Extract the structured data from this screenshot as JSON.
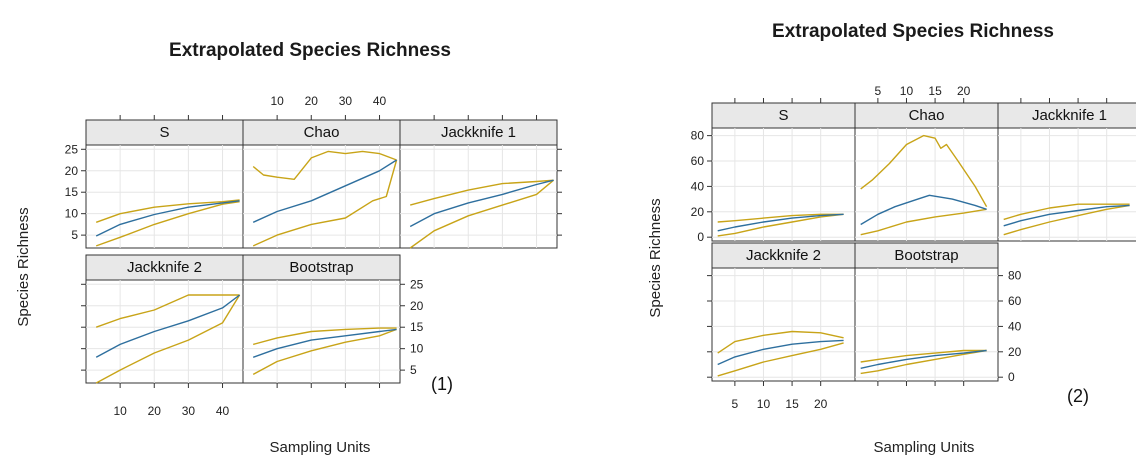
{
  "chart_data": [
    {
      "id": "fig1",
      "type": "line",
      "title": "Extrapolated Species Richness",
      "xlabel": "Sampling Units",
      "ylabel": "Species Richness",
      "label": "(1)",
      "xlim": [
        0,
        46
      ],
      "ylim": [
        2,
        26
      ],
      "x_ticks": [
        10,
        20,
        30,
        40
      ],
      "y_ticks": [
        5,
        10,
        15,
        20,
        25
      ],
      "colors": {
        "mean": "#2e6f9e",
        "bounds": "#c8a418",
        "grid": "#e6e6e6",
        "strip": "#e8e8e8"
      },
      "panels": [
        {
          "name": "S",
          "mean": [
            [
              3,
              4.8
            ],
            [
              10,
              7.5
            ],
            [
              20,
              9.8
            ],
            [
              30,
              11.5
            ],
            [
              40,
              12.5
            ],
            [
              45,
              13
            ]
          ],
          "upper": [
            [
              3,
              8
            ],
            [
              10,
              10
            ],
            [
              20,
              11.5
            ],
            [
              30,
              12.3
            ],
            [
              40,
              12.8
            ],
            [
              45,
              13.2
            ]
          ],
          "lower": [
            [
              3,
              2.5
            ],
            [
              10,
              4.5
            ],
            [
              20,
              7.5
            ],
            [
              30,
              10
            ],
            [
              40,
              12.2
            ],
            [
              45,
              12.8
            ]
          ]
        },
        {
          "name": "Chao",
          "mean": [
            [
              3,
              8
            ],
            [
              10,
              10.5
            ],
            [
              20,
              13
            ],
            [
              30,
              16.5
            ],
            [
              40,
              20
            ],
            [
              45,
              22.5
            ]
          ],
          "upper": [
            [
              3,
              21
            ],
            [
              6,
              19
            ],
            [
              10,
              18.5
            ],
            [
              15,
              18
            ],
            [
              20,
              23
            ],
            [
              25,
              24.5
            ],
            [
              30,
              24
            ],
            [
              35,
              24.5
            ],
            [
              40,
              24
            ],
            [
              45,
              22.5
            ]
          ],
          "lower": [
            [
              3,
              2.5
            ],
            [
              10,
              5
            ],
            [
              20,
              7.5
            ],
            [
              30,
              9
            ],
            [
              38,
              13
            ],
            [
              42,
              14
            ],
            [
              45,
              22.5
            ]
          ]
        },
        {
          "name": "Jackknife 1",
          "mean": [
            [
              3,
              7
            ],
            [
              10,
              10
            ],
            [
              20,
              12.5
            ],
            [
              30,
              14.5
            ],
            [
              40,
              16.8
            ],
            [
              45,
              17.8
            ]
          ],
          "upper": [
            [
              3,
              12
            ],
            [
              10,
              13.5
            ],
            [
              20,
              15.5
            ],
            [
              30,
              17
            ],
            [
              40,
              17.5
            ],
            [
              45,
              17.8
            ]
          ],
          "lower": [
            [
              3,
              2
            ],
            [
              10,
              6
            ],
            [
              20,
              9.5
            ],
            [
              30,
              12
            ],
            [
              40,
              14.5
            ],
            [
              45,
              17.8
            ]
          ]
        },
        {
          "name": "Jackknife 2",
          "mean": [
            [
              3,
              8
            ],
            [
              10,
              11
            ],
            [
              20,
              14
            ],
            [
              30,
              16.5
            ],
            [
              40,
              19.5
            ],
            [
              45,
              22.5
            ]
          ],
          "upper": [
            [
              3,
              15
            ],
            [
              10,
              17
            ],
            [
              20,
              19
            ],
            [
              30,
              22.5
            ],
            [
              40,
              22.5
            ],
            [
              45,
              22.5
            ]
          ],
          "lower": [
            [
              3,
              2
            ],
            [
              10,
              5
            ],
            [
              20,
              9
            ],
            [
              30,
              12
            ],
            [
              40,
              16
            ],
            [
              45,
              22.5
            ]
          ]
        },
        {
          "name": "Bootstrap",
          "mean": [
            [
              3,
              8
            ],
            [
              10,
              10
            ],
            [
              20,
              12
            ],
            [
              30,
              13
            ],
            [
              40,
              14
            ],
            [
              45,
              14.5
            ]
          ],
          "upper": [
            [
              3,
              11
            ],
            [
              10,
              12.5
            ],
            [
              20,
              14
            ],
            [
              30,
              14.5
            ],
            [
              40,
              14.8
            ],
            [
              45,
              14.8
            ]
          ],
          "lower": [
            [
              3,
              4
            ],
            [
              10,
              7
            ],
            [
              20,
              9.5
            ],
            [
              30,
              11.5
            ],
            [
              40,
              13
            ],
            [
              45,
              14.5
            ]
          ]
        }
      ]
    },
    {
      "id": "fig2",
      "type": "line",
      "title": "Extrapolated Species Richness",
      "xlabel": "Sampling Units",
      "ylabel": "Species Richness",
      "label": "(2)",
      "xlim": [
        1,
        26
      ],
      "ylim": [
        -3,
        86
      ],
      "x_ticks": [
        5,
        10,
        15,
        20
      ],
      "y_ticks": [
        0,
        20,
        40,
        60,
        80
      ],
      "colors": {
        "mean": "#2e6f9e",
        "bounds": "#c8a418",
        "grid": "#e6e6e6",
        "strip": "#e8e8e8"
      },
      "panels": [
        {
          "name": "S",
          "mean": [
            [
              2,
              5
            ],
            [
              5,
              8
            ],
            [
              10,
              12
            ],
            [
              15,
              15
            ],
            [
              20,
              17
            ],
            [
              24,
              18
            ]
          ],
          "upper": [
            [
              2,
              12
            ],
            [
              5,
              13
            ],
            [
              10,
              15
            ],
            [
              15,
              17
            ],
            [
              20,
              18
            ],
            [
              24,
              18
            ]
          ],
          "lower": [
            [
              2,
              1
            ],
            [
              5,
              3
            ],
            [
              10,
              8
            ],
            [
              15,
              12
            ],
            [
              20,
              16
            ],
            [
              24,
              18
            ]
          ]
        },
        {
          "name": "Chao",
          "mean": [
            [
              2,
              10
            ],
            [
              5,
              18
            ],
            [
              8,
              24
            ],
            [
              12,
              30
            ],
            [
              14,
              33
            ],
            [
              18,
              30
            ],
            [
              22,
              25
            ],
            [
              24,
              22
            ]
          ],
          "upper": [
            [
              2,
              38
            ],
            [
              4,
              45
            ],
            [
              7,
              58
            ],
            [
              10,
              73
            ],
            [
              13,
              80
            ],
            [
              15,
              78
            ],
            [
              16,
              70
            ],
            [
              17,
              73
            ],
            [
              19,
              60
            ],
            [
              22,
              40
            ],
            [
              24,
              24
            ]
          ],
          "lower": [
            [
              2,
              2
            ],
            [
              5,
              5
            ],
            [
              10,
              12
            ],
            [
              15,
              16
            ],
            [
              20,
              19
            ],
            [
              24,
              22
            ]
          ]
        },
        {
          "name": "Jackknife 1",
          "mean": [
            [
              2,
              9
            ],
            [
              5,
              13
            ],
            [
              10,
              18
            ],
            [
              15,
              21
            ],
            [
              20,
              24
            ],
            [
              24,
              25
            ]
          ],
          "upper": [
            [
              2,
              14
            ],
            [
              5,
              18
            ],
            [
              10,
              23
            ],
            [
              15,
              26
            ],
            [
              20,
              26
            ],
            [
              24,
              26
            ]
          ],
          "lower": [
            [
              2,
              2
            ],
            [
              5,
              6
            ],
            [
              10,
              12
            ],
            [
              15,
              17
            ],
            [
              20,
              22
            ],
            [
              24,
              25
            ]
          ]
        },
        {
          "name": "Jackknife 2",
          "mean": [
            [
              2,
              10
            ],
            [
              5,
              16
            ],
            [
              10,
              22
            ],
            [
              15,
              26
            ],
            [
              20,
              28
            ],
            [
              24,
              29
            ]
          ],
          "upper": [
            [
              2,
              19
            ],
            [
              5,
              28
            ],
            [
              10,
              33
            ],
            [
              15,
              36
            ],
            [
              20,
              35
            ],
            [
              24,
              31
            ]
          ],
          "lower": [
            [
              2,
              1
            ],
            [
              5,
              5
            ],
            [
              10,
              12
            ],
            [
              15,
              17
            ],
            [
              20,
              22
            ],
            [
              24,
              27
            ]
          ]
        },
        {
          "name": "Bootstrap",
          "mean": [
            [
              2,
              7
            ],
            [
              5,
              10
            ],
            [
              10,
              14
            ],
            [
              15,
              17
            ],
            [
              20,
              19
            ],
            [
              24,
              21
            ]
          ],
          "upper": [
            [
              2,
              12
            ],
            [
              5,
              14
            ],
            [
              10,
              17
            ],
            [
              15,
              19
            ],
            [
              20,
              21
            ],
            [
              24,
              21
            ]
          ],
          "lower": [
            [
              2,
              3
            ],
            [
              5,
              5
            ],
            [
              10,
              10
            ],
            [
              15,
              14
            ],
            [
              20,
              18
            ],
            [
              24,
              21
            ]
          ]
        }
      ]
    }
  ]
}
